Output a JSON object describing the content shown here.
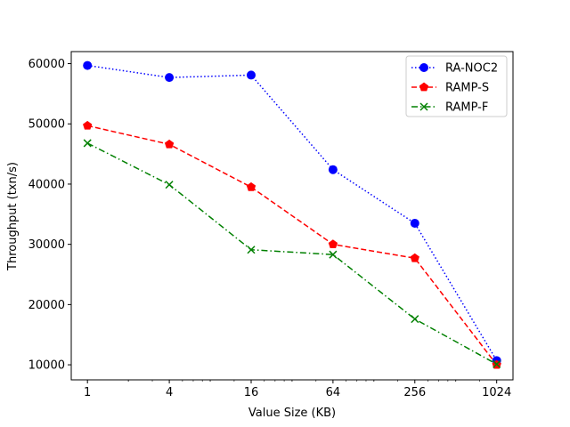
{
  "chart_data": {
    "type": "line",
    "xlabel": "Value Size (KB)",
    "ylabel": "Throughput (txn/s)",
    "x_scale": "log2",
    "x": [
      1,
      4,
      16,
      64,
      256,
      1024
    ],
    "x_tick_labels": [
      "1",
      "4",
      "16",
      "64",
      "256",
      "1024"
    ],
    "xlim": [
      0.76,
      1350
    ],
    "ylim": [
      7500,
      62000
    ],
    "y_ticks": [
      10000,
      20000,
      30000,
      40000,
      50000,
      60000
    ],
    "y_tick_labels": [
      "10000",
      "20000",
      "30000",
      "40000",
      "50000",
      "60000"
    ],
    "grid": false,
    "legend_position": "top-right",
    "series": [
      {
        "name": "RA-NOC2",
        "color": "#0000ff",
        "line_style": "dotted",
        "marker": "circle",
        "values": [
          59700,
          57700,
          58100,
          42400,
          33500,
          10700
        ]
      },
      {
        "name": "RAMP-S",
        "color": "#ff0000",
        "line_style": "dashed",
        "marker": "pentagon",
        "values": [
          49700,
          46600,
          39500,
          30000,
          27700,
          10000
        ]
      },
      {
        "name": "RAMP-F",
        "color": "#008000",
        "line_style": "dashdot",
        "marker": "x",
        "values": [
          46800,
          39900,
          29100,
          28300,
          17600,
          10100
        ]
      }
    ]
  }
}
